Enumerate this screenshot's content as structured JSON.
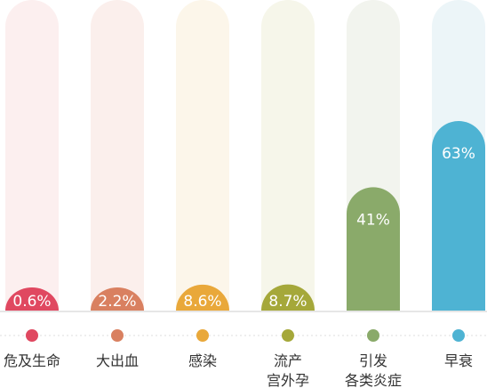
{
  "chart_data": {
    "type": "bar",
    "ylim": [
      0,
      100
    ],
    "categories": [
      {
        "lines": [
          "危及生命"
        ],
        "value": 0.6,
        "value_label": "0.6%",
        "color": "#e04860",
        "track": "#fcefef"
      },
      {
        "lines": [
          "大出血"
        ],
        "value": 2.2,
        "value_label": "2.2%",
        "color": "#d98060",
        "track": "#fbefec"
      },
      {
        "lines": [
          "感染"
        ],
        "value": 8.6,
        "value_label": "8.6%",
        "color": "#e9a83a",
        "track": "#fcf6ea"
      },
      {
        "lines": [
          "流产",
          "宫外孕"
        ],
        "value": 8.7,
        "value_label": "8.7%",
        "color": "#a5a83a",
        "track": "#f6f6ea"
      },
      {
        "lines": [
          "引发",
          "各类炎症"
        ],
        "value": 41,
        "value_label": "41%",
        "color": "#8aaa6a",
        "track": "#f2f4ee"
      },
      {
        "lines": [
          "早衰"
        ],
        "value": 63,
        "value_label": "63%",
        "color": "#4eb3d3",
        "track": "#ecf5f8"
      }
    ]
  }
}
